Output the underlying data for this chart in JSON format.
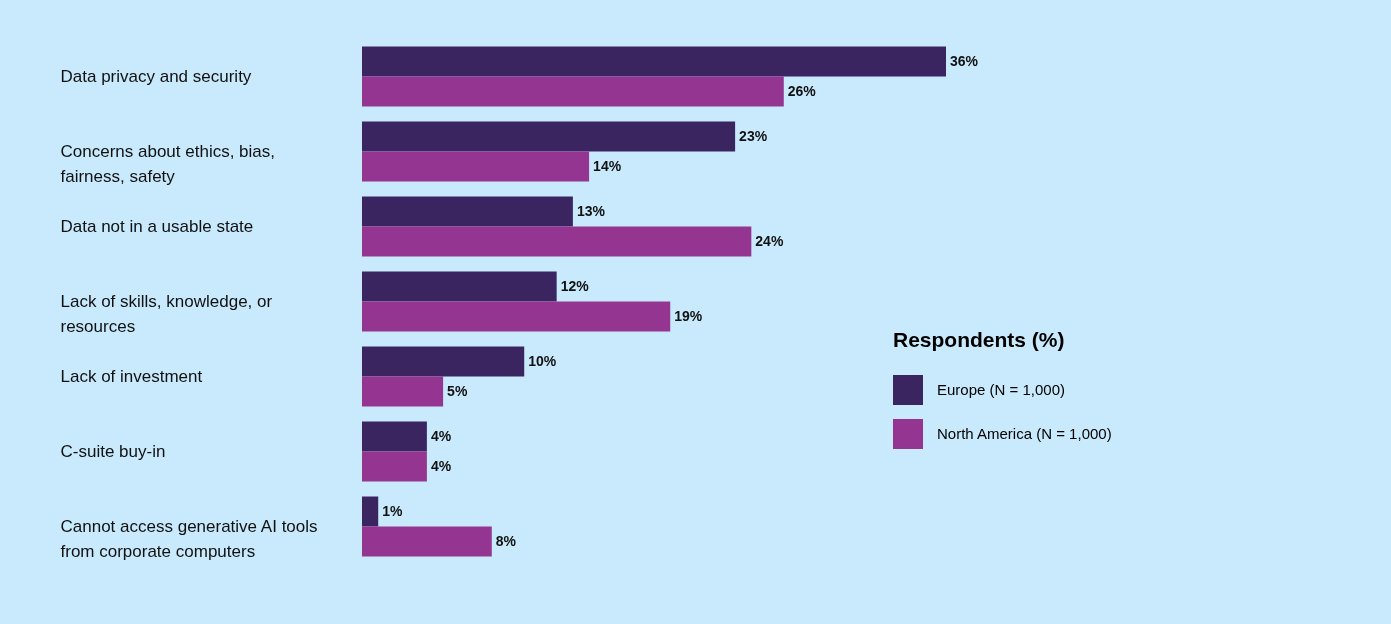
{
  "chart_data": {
    "type": "bar",
    "orientation": "horizontal",
    "categories": [
      "Data privacy and security",
      "Concerns about ethics, bias, fairness, safety",
      "Data not in a usable state",
      "Lack of skills, knowledge, or resources",
      "Lack of investment",
      "C-suite buy-in",
      "Cannot access generative AI tools from corporate computers"
    ],
    "series": [
      {
        "name": "Europe (N = 1,000)",
        "color": "#3a2560",
        "values": [
          36,
          23,
          13,
          12,
          10,
          4,
          1
        ],
        "value_labels": [
          "36%",
          "23%",
          "13%",
          "12%",
          "10%",
          "4%",
          "1%"
        ]
      },
      {
        "name": "North America (N = 1,000)",
        "color": "#933591",
        "values": [
          26,
          14,
          24,
          19,
          5,
          4,
          8
        ],
        "value_labels": [
          "26%",
          "14%",
          "24%",
          "19%",
          "5%",
          "4%",
          "8%"
        ]
      }
    ],
    "legend": "right",
    "legend_title": "Respondents (%)"
  }
}
